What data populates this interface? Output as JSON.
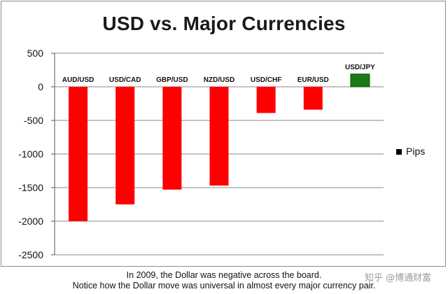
{
  "chart_data": {
    "type": "bar",
    "title": "USD vs. Major Currencies",
    "categories": [
      "AUD/USD",
      "USD/CAD",
      "GBP/USD",
      "NZD/USD",
      "USD/CHF",
      "EUR/USD",
      "USD/JPY"
    ],
    "series": [
      {
        "name": "Pips",
        "values": [
          -2000,
          -1750,
          -1530,
          -1470,
          -390,
          -340,
          190
        ],
        "colors": [
          "#ff0000",
          "#ff0000",
          "#ff0000",
          "#ff0000",
          "#ff0000",
          "#ff0000",
          "#1a7a1a"
        ]
      }
    ],
    "y_ticks": [
      500,
      0,
      -500,
      -1000,
      -1500,
      -2000,
      -2500
    ],
    "ylim": [
      -2500,
      500
    ],
    "xlabel": "",
    "ylabel": "",
    "grid": true,
    "legend_position": "right",
    "legend_swatch_color": "#000000"
  },
  "caption": {
    "line1": "In 2009, the Dollar was negative across the board.",
    "line2": "Notice how the Dollar move was universal in almost every major currency pair."
  },
  "watermark": "知乎 @博通财富"
}
